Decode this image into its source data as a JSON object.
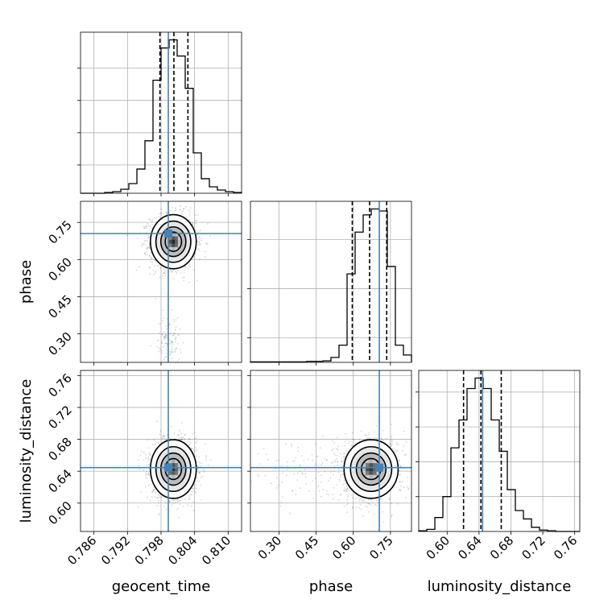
{
  "chart_data": {
    "type": "corner",
    "params": [
      "geocent_time",
      "phase",
      "luminosity_distance"
    ],
    "truths": [
      0.7993,
      0.705,
      0.6445
    ],
    "truth_color": "#4682b4",
    "ranges": [
      [
        0.7836,
        0.8124
      ],
      [
        0.185,
        0.835
      ],
      [
        0.5644,
        0.7664
      ]
    ],
    "ticks": [
      {
        "values": [
          0.786,
          0.792,
          0.798,
          0.804,
          0.81
        ],
        "labels": [
          "0.786",
          "0.792",
          "0.798",
          "0.804",
          "0.810"
        ]
      },
      {
        "values": [
          0.3,
          0.45,
          0.6,
          0.75
        ],
        "labels": [
          "0.30",
          "0.45",
          "0.60",
          "0.75"
        ]
      },
      {
        "values": [
          0.6,
          0.64,
          0.68,
          0.72,
          0.76
        ],
        "labels": [
          "0.60",
          "0.64",
          "0.68",
          "0.72",
          "0.76"
        ]
      }
    ],
    "histograms": [
      {
        "param": "geocent_time",
        "bin_range": [
          0.7836,
          0.8124
        ],
        "counts": [
          0,
          0,
          0,
          1,
          2,
          5,
          12,
          30,
          65,
          140,
          180,
          190,
          170,
          130,
          50,
          18,
          8,
          4,
          2,
          1
        ],
        "quantiles": [
          0.7978,
          0.8003,
          0.8028
        ],
        "y_ticks": [
          35,
          75,
          115,
          155
        ]
      },
      {
        "param": "phase",
        "bin_range": [
          0.185,
          0.835
        ],
        "counts": [
          1,
          1,
          1,
          1,
          1,
          1,
          1,
          2,
          2,
          3,
          10,
          35,
          180,
          265,
          300,
          312,
          308,
          195,
          35,
          15
        ],
        "quantiles": [
          0.596,
          0.666,
          0.735
        ],
        "y_ticks": [
          50,
          150,
          250
        ]
      },
      {
        "param": "luminosity_distance",
        "bin_range": [
          0.5644,
          0.7664
        ],
        "counts": [
          1,
          3,
          20,
          50,
          120,
          160,
          205,
          220,
          205,
          160,
          115,
          60,
          30,
          18,
          6,
          2,
          1,
          0,
          0,
          0
        ],
        "quantiles": [
          0.6206,
          0.6424,
          0.6679
        ],
        "y_ticks": [
          50,
          100,
          150,
          200
        ]
      }
    ],
    "joint": [
      {
        "x": "geocent_time",
        "y": "phase",
        "mean": [
          0.8002,
          0.672
        ],
        "sd": [
          0.00195,
          0.052
        ],
        "tail": [
          0.7993,
          0.265,
          0.00105,
          0.055
        ]
      },
      {
        "x": "geocent_time",
        "y": "luminosity_distance",
        "mean": [
          0.8002,
          0.6427
        ],
        "sd": [
          0.00195,
          0.0175
        ],
        "tail": null
      },
      {
        "x": "phase",
        "y": "luminosity_distance",
        "mean": [
          0.672,
          0.6427
        ],
        "sd": [
          0.052,
          0.0175
        ],
        "tail": [
          0.4,
          0.644,
          0.14,
          0.02
        ]
      }
    ]
  }
}
